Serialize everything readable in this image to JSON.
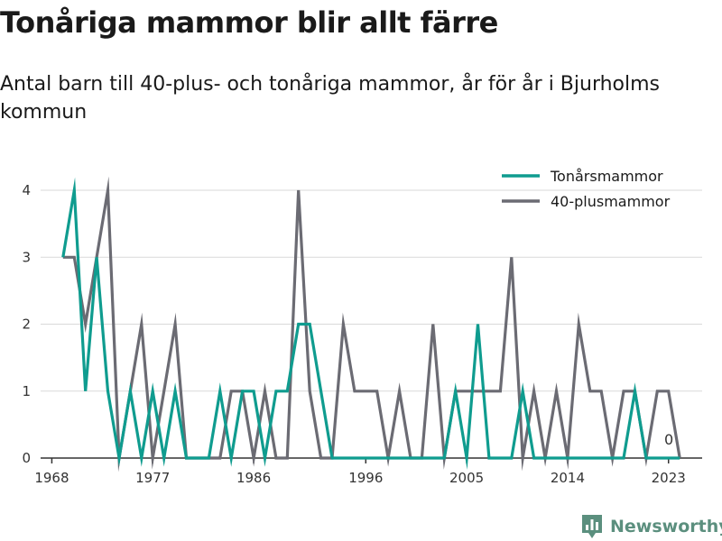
{
  "title": "Tonåriga mammor blir allt färre",
  "subtitle": "Antal barn till 40-plus- och tonåriga mammor, år för år i Bjurholms kommun",
  "logo_text": "Newsworthy",
  "colors": {
    "teen": "#0f9c8f",
    "plus40": "#6b6b73",
    "grid": "#d9d9d9",
    "axis": "#333333",
    "logo": "#5b8f7e"
  },
  "chart_data": {
    "type": "line",
    "title": "Tonåriga mammor blir allt färre",
    "subtitle": "Antal barn till 40-plus- och tonåriga mammor, år för år i Bjurholms kommun",
    "xlabel": "",
    "ylabel": "",
    "x_ticks": [
      1968,
      1977,
      1986,
      1996,
      2005,
      2014,
      2023
    ],
    "x_tick_labels": [
      "1968",
      "1977",
      "1986",
      "1996",
      "2005",
      "2014",
      "2023"
    ],
    "y_ticks": [
      0,
      1,
      2,
      3,
      4
    ],
    "y_tick_labels": [
      "0",
      "1",
      "2",
      "3",
      "4"
    ],
    "xlim": [
      1967,
      2026
    ],
    "ylim": [
      0,
      4
    ],
    "grid": "horizontal",
    "legend_position": "top-right",
    "end_label": "0",
    "series": [
      {
        "name": "Tonårsmammor",
        "color": "#0f9c8f",
        "x": [
          1969,
          1970,
          1971,
          1972,
          1973,
          1974,
          1975,
          1976,
          1977,
          1978,
          1979,
          1980,
          1981,
          1982,
          1983,
          1984,
          1985,
          1986,
          1987,
          1988,
          1989,
          1990,
          1991,
          1992,
          1993,
          1994,
          1995,
          1996,
          1997,
          1998,
          1999,
          2000,
          2001,
          2002,
          2003,
          2004,
          2005,
          2006,
          2007,
          2008,
          2009,
          2010,
          2011,
          2012,
          2013,
          2014,
          2015,
          2016,
          2017,
          2018,
          2019,
          2020,
          2021,
          2022,
          2023,
          2024
        ],
        "values": [
          3,
          4,
          1,
          3,
          1,
          0,
          1,
          0,
          1,
          0,
          1,
          0,
          0,
          0,
          1,
          0,
          1,
          1,
          0,
          1,
          1,
          2,
          2,
          1,
          0,
          0,
          0,
          0,
          0,
          0,
          0,
          0,
          0,
          0,
          0,
          1,
          0,
          2,
          0,
          0,
          0,
          1,
          0,
          0,
          0,
          0,
          0,
          0,
          0,
          0,
          0,
          1,
          0,
          0,
          0,
          0
        ]
      },
      {
        "name": "40-plusmammor",
        "color": "#6b6b73",
        "x": [
          1969,
          1970,
          1971,
          1972,
          1973,
          1974,
          1975,
          1976,
          1977,
          1978,
          1979,
          1980,
          1981,
          1982,
          1983,
          1984,
          1985,
          1986,
          1987,
          1988,
          1989,
          1990,
          1991,
          1992,
          1993,
          1994,
          1995,
          1996,
          1997,
          1998,
          1999,
          2000,
          2001,
          2002,
          2003,
          2004,
          2005,
          2006,
          2007,
          2008,
          2009,
          2010,
          2011,
          2012,
          2013,
          2014,
          2015,
          2016,
          2017,
          2018,
          2019,
          2020,
          2021,
          2022,
          2023,
          2024
        ],
        "values": [
          3,
          3,
          2,
          3,
          4,
          0,
          1,
          2,
          0,
          1,
          2,
          0,
          0,
          0,
          0,
          1,
          1,
          0,
          1,
          0,
          0,
          4,
          1,
          0,
          0,
          2,
          1,
          1,
          1,
          0,
          1,
          0,
          0,
          2,
          0,
          1,
          1,
          1,
          1,
          1,
          3,
          0,
          1,
          0,
          1,
          0,
          2,
          1,
          1,
          0,
          1,
          1,
          0,
          1,
          1,
          0
        ]
      }
    ]
  }
}
